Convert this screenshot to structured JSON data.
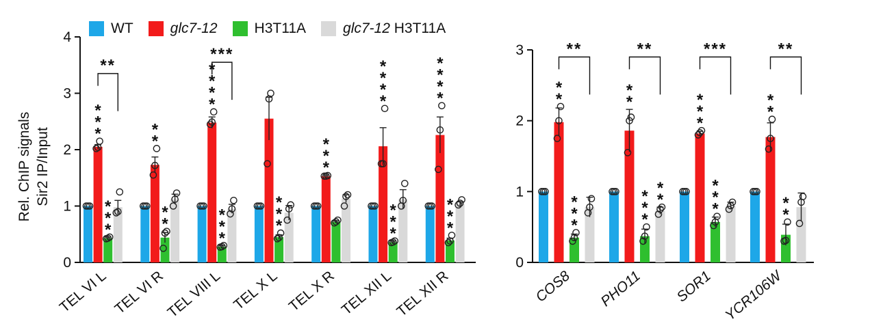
{
  "colors": {
    "WT": "#1ea7e8",
    "glc7-12": "#f21b1b",
    "H3T11A": "#2fbf2f",
    "glc7-12 H3T11A": "#d9d9d9"
  },
  "legend": [
    {
      "label": "WT",
      "italic": "",
      "rest": "WT",
      "color": "#1ea7e8"
    },
    {
      "label": "glc7-12",
      "italic": "glc7-12",
      "rest": "",
      "color": "#f21b1b"
    },
    {
      "label": "H3T11A",
      "italic": "",
      "rest": "H3T11A",
      "color": "#2fbf2f"
    },
    {
      "label": "glc7-12 H3T11A",
      "italic": "glc7-12",
      "rest": " H3T11A",
      "color": "#d9d9d9"
    }
  ],
  "chart_data": [
    {
      "type": "bar",
      "ylabel": [
        "Rel. ChIP signals",
        "Sir2 IP/Input"
      ],
      "ylim": [
        0,
        4
      ],
      "yticks": [
        "0",
        "1",
        "2",
        "3",
        "4"
      ],
      "categories": [
        "TEL VI L",
        "TEL VI R",
        "TEL VIII L",
        "TEL X L",
        "TEL X R",
        "TEL XII L",
        "TEL XII R"
      ],
      "italic_categories": false,
      "series": [
        {
          "name": "WT",
          "values": [
            1,
            1,
            1,
            1,
            1,
            1,
            1
          ],
          "errors": [
            0,
            0,
            0,
            0,
            0,
            0,
            0
          ],
          "points": [
            [
              1,
              1,
              1
            ],
            [
              1,
              1,
              1
            ],
            [
              1,
              1,
              1
            ],
            [
              1,
              1,
              1
            ],
            [
              1,
              1,
              1
            ],
            [
              1,
              1,
              1
            ],
            [
              1,
              1,
              1
            ]
          ],
          "stars": [
            "",
            "",
            "",
            "",
            "",
            "",
            ""
          ]
        },
        {
          "name": "glc7-12",
          "values": [
            2.05,
            1.73,
            2.48,
            2.55,
            1.53,
            2.06,
            2.26
          ],
          "errors": [
            0.04,
            0.14,
            0.1,
            0.38,
            0.02,
            0.33,
            0.32
          ],
          "points": [
            [
              2.02,
              2.04,
              2.15
            ],
            [
              1.55,
              1.72,
              2.02
            ],
            [
              2.45,
              2.49,
              2.67
            ],
            [
              1.75,
              2.9,
              3.0
            ],
            [
              1.53,
              1.53,
              1.54
            ],
            [
              1.75,
              1.75,
              2.73
            ],
            [
              1.65,
              2.35,
              2.78
            ]
          ],
          "stars": [
            "***",
            "**",
            "****",
            "",
            "***",
            "****",
            "****"
          ]
        },
        {
          "name": "H3T11A",
          "values": [
            0.43,
            0.44,
            0.28,
            0.45,
            0.72,
            0.36,
            0.39
          ],
          "errors": [
            0.02,
            0.09,
            0.02,
            0.04,
            0.02,
            0.02,
            0.04
          ],
          "points": [
            [
              0.42,
              0.43,
              0.45
            ],
            [
              0.25,
              0.52,
              0.55
            ],
            [
              0.27,
              0.28,
              0.3
            ],
            [
              0.42,
              0.44,
              0.52
            ],
            [
              0.7,
              0.72,
              0.75
            ],
            [
              0.35,
              0.36,
              0.38
            ],
            [
              0.35,
              0.38,
              0.48
            ]
          ],
          "stars": [
            "***",
            "**",
            "***",
            "***",
            "",
            "***",
            "***"
          ]
        },
        {
          "name": "glc7-12 H3T11A",
          "values": [
            0.98,
            1.12,
            0.95,
            0.88,
            1.13,
            1.12,
            1.04
          ],
          "errors": [
            0.12,
            0.09,
            0.08,
            0.13,
            0.07,
            0.17,
            0.04
          ],
          "points": [
            [
              0.88,
              0.9,
              1.25
            ],
            [
              1.0,
              1.12,
              1.23
            ],
            [
              0.86,
              0.95,
              1.1
            ],
            [
              0.75,
              0.95,
              1.02
            ],
            [
              1.0,
              1.17,
              1.2
            ],
            [
              1.0,
              1.1,
              1.4
            ],
            [
              1.02,
              1.05,
              1.11
            ]
          ],
          "stars": [
            "",
            "",
            "",
            "",
            "",
            "",
            ""
          ]
        }
      ],
      "brackets": [
        {
          "category_index": 0,
          "label": "**",
          "top": 3.35
        },
        {
          "category_index": 2,
          "label": "***",
          "top": 3.55
        }
      ]
    },
    {
      "type": "bar",
      "ylabel": [],
      "ylim": [
        0,
        3
      ],
      "yticks": [
        "0",
        "1",
        "2",
        "3"
      ],
      "categories": [
        "COS8",
        "PHO11",
        "SOR1",
        "YCR106W"
      ],
      "italic_categories": true,
      "series": [
        {
          "name": "WT",
          "values": [
            1,
            1,
            1,
            1
          ],
          "errors": [
            0,
            0,
            0,
            0
          ],
          "points": [
            [
              1,
              1,
              1
            ],
            [
              1,
              1,
              1
            ],
            [
              1,
              1,
              1
            ],
            [
              1,
              1,
              1
            ]
          ],
          "stars": [
            "",
            "",
            "",
            ""
          ]
        },
        {
          "name": "glc7-12",
          "values": [
            1.98,
            1.86,
            1.82,
            1.77
          ],
          "errors": [
            0.2,
            0.3,
            0.03,
            0.2
          ],
          "points": [
            [
              1.75,
              2.0,
              2.2
            ],
            [
              1.55,
              2.0,
              2.05
            ],
            [
              1.8,
              1.83,
              1.86
            ],
            [
              1.6,
              1.75,
              2.02
            ]
          ],
          "stars": [
            "**",
            "**",
            "***",
            "**"
          ]
        },
        {
          "name": "H3T11A",
          "values": [
            0.35,
            0.37,
            0.57,
            0.39
          ],
          "errors": [
            0.05,
            0.1,
            0.07,
            0.15
          ],
          "points": [
            [
              0.3,
              0.35,
              0.42
            ],
            [
              0.3,
              0.37,
              0.5
            ],
            [
              0.52,
              0.57,
              0.65
            ],
            [
              0.3,
              0.31,
              0.57
            ]
          ],
          "stars": [
            "***",
            "***",
            "***",
            "**"
          ]
        },
        {
          "name": "glc7-12 H3T11A",
          "values": [
            0.78,
            0.73,
            0.8,
            0.78
          ],
          "errors": [
            0.14,
            0.05,
            0.05,
            0.2
          ],
          "points": [
            [
              0.7,
              0.78,
              0.9
            ],
            [
              0.68,
              0.75,
              0.78
            ],
            [
              0.75,
              0.8,
              0.85
            ],
            [
              0.55,
              0.85,
              0.93
            ]
          ],
          "stars": [
            "",
            "**",
            "",
            ""
          ]
        }
      ],
      "brackets": [
        {
          "category_index": 0,
          "label": "**",
          "top": 2.9
        },
        {
          "category_index": 1,
          "label": "**",
          "top": 2.9
        },
        {
          "category_index": 2,
          "label": "***",
          "top": 2.9
        },
        {
          "category_index": 3,
          "label": "**",
          "top": 2.9
        }
      ]
    }
  ]
}
